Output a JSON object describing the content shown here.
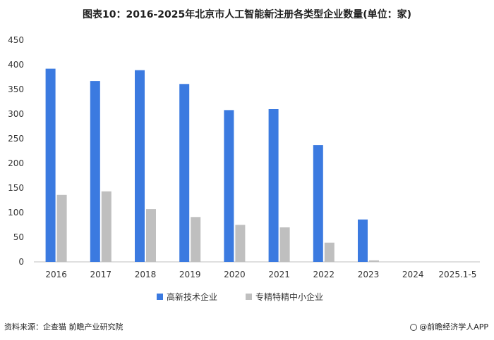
{
  "chart_data": {
    "type": "bar",
    "title": "图表10：2016-2025年北京市人工智能新注册各类型企业数量(单位：家)",
    "categories": [
      "2016",
      "2017",
      "2018",
      "2019",
      "2020",
      "2021",
      "2022",
      "2023",
      "2024",
      "2025.1-5"
    ],
    "series": [
      {
        "name": "高新技术企业",
        "color": "#3b7ae0",
        "values": [
          392,
          367,
          389,
          361,
          308,
          310,
          237,
          86,
          0,
          0
        ]
      },
      {
        "name": "专精特精中小企业",
        "color": "#bfbfbf",
        "values": [
          136,
          143,
          107,
          91,
          75,
          70,
          39,
          3,
          0,
          0
        ]
      }
    ],
    "ylim": [
      0,
      450
    ],
    "yticks": [
      0,
      50,
      100,
      150,
      200,
      250,
      300,
      350,
      400,
      450
    ],
    "grid": false,
    "legend_position": "bottom"
  },
  "footer": {
    "source": "资料来源：企查猫 前瞻产业研究院",
    "brand": "@前瞻经济学人APP"
  }
}
